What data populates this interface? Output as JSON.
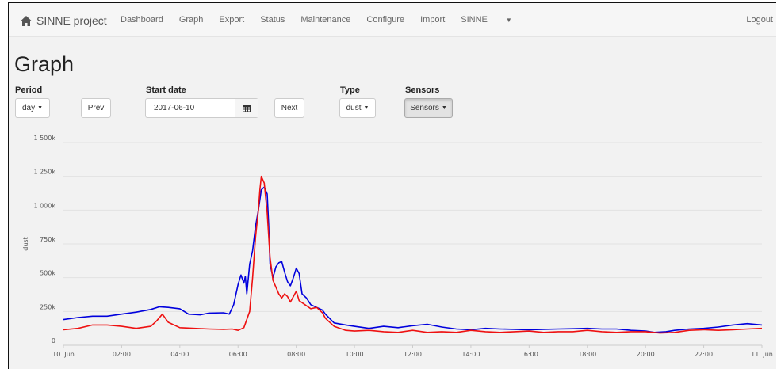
{
  "navbar": {
    "brand": "SINNE project",
    "links": [
      {
        "label": "Dashboard"
      },
      {
        "label": "Graph"
      },
      {
        "label": "Export"
      },
      {
        "label": "Status"
      },
      {
        "label": "Maintenance"
      },
      {
        "label": "Configure"
      },
      {
        "label": "Import"
      },
      {
        "label": "SINNE",
        "dropdown": true
      }
    ],
    "logout": "Logout"
  },
  "page_title": "Graph",
  "filters": {
    "period_label": "Period",
    "period_value": "day",
    "prev_label": "Prev",
    "start_date_label": "Start date",
    "start_date_value": "2017-06-10",
    "next_label": "Next",
    "type_label": "Type",
    "type_value": "dust",
    "sensors_label": "Sensors",
    "sensors_button": "Sensors"
  },
  "icons": {
    "brand": "home-icon",
    "date_addon": "calendar-icon",
    "caret": "caret-down-icon"
  },
  "colors": {
    "series_blue": "#0000dd",
    "series_red": "#ee1111",
    "background": "#f2f2f2"
  },
  "chart_data": {
    "type": "line",
    "ylabel": "dust",
    "ylim": [
      0,
      1500000
    ],
    "y_ticks": [
      {
        "value": 0,
        "label": "0"
      },
      {
        "value": 250000,
        "label": "250k"
      },
      {
        "value": 500000,
        "label": "500k"
      },
      {
        "value": 750000,
        "label": "750k"
      },
      {
        "value": 1000000,
        "label": "1 000k"
      },
      {
        "value": 1250000,
        "label": "1 250k"
      },
      {
        "value": 1500000,
        "label": "1 500k"
      }
    ],
    "x_unit": "hours after 10 Jun 00:00",
    "xlim": [
      0,
      24
    ],
    "x_ticks": [
      {
        "value": 0,
        "label": "10. Jun"
      },
      {
        "value": 2,
        "label": "02:00"
      },
      {
        "value": 4,
        "label": "04:00"
      },
      {
        "value": 6,
        "label": "06:00"
      },
      {
        "value": 8,
        "label": "08:00"
      },
      {
        "value": 10,
        "label": "10:00"
      },
      {
        "value": 12,
        "label": "12:00"
      },
      {
        "value": 14,
        "label": "14:00"
      },
      {
        "value": 16,
        "label": "16:00"
      },
      {
        "value": 18,
        "label": "18:00"
      },
      {
        "value": 20,
        "label": "20:00"
      },
      {
        "value": 22,
        "label": "22:00"
      },
      {
        "value": 24,
        "label": "11. Jun"
      }
    ],
    "grid": true,
    "series": [
      {
        "color": "#0000dd",
        "points": [
          [
            0,
            190000
          ],
          [
            0.5,
            205000
          ],
          [
            1,
            215000
          ],
          [
            1.5,
            215000
          ],
          [
            2,
            230000
          ],
          [
            2.5,
            245000
          ],
          [
            3,
            265000
          ],
          [
            3.3,
            285000
          ],
          [
            3.6,
            280000
          ],
          [
            4,
            270000
          ],
          [
            4.3,
            230000
          ],
          [
            4.7,
            225000
          ],
          [
            5,
            238000
          ],
          [
            5.5,
            240000
          ],
          [
            5.7,
            230000
          ],
          [
            5.85,
            300000
          ],
          [
            6.0,
            450000
          ],
          [
            6.1,
            520000
          ],
          [
            6.2,
            460000
          ],
          [
            6.25,
            510000
          ],
          [
            6.3,
            380000
          ],
          [
            6.4,
            600000
          ],
          [
            6.5,
            700000
          ],
          [
            6.6,
            880000
          ],
          [
            6.7,
            1000000
          ],
          [
            6.8,
            1150000
          ],
          [
            6.9,
            1170000
          ],
          [
            7.0,
            1120000
          ],
          [
            7.05,
            900000
          ],
          [
            7.1,
            600000
          ],
          [
            7.2,
            500000
          ],
          [
            7.3,
            580000
          ],
          [
            7.4,
            610000
          ],
          [
            7.5,
            620000
          ],
          [
            7.6,
            540000
          ],
          [
            7.7,
            470000
          ],
          [
            7.8,
            440000
          ],
          [
            7.9,
            500000
          ],
          [
            8.0,
            570000
          ],
          [
            8.1,
            530000
          ],
          [
            8.2,
            380000
          ],
          [
            8.35,
            350000
          ],
          [
            8.5,
            300000
          ],
          [
            8.7,
            280000
          ],
          [
            8.9,
            260000
          ],
          [
            9,
            230000
          ],
          [
            9.3,
            165000
          ],
          [
            9.7,
            150000
          ],
          [
            10,
            140000
          ],
          [
            10.5,
            125000
          ],
          [
            11,
            140000
          ],
          [
            11.5,
            130000
          ],
          [
            12,
            145000
          ],
          [
            12.5,
            155000
          ],
          [
            13,
            135000
          ],
          [
            13.5,
            120000
          ],
          [
            14,
            115000
          ],
          [
            14.5,
            125000
          ],
          [
            15,
            120000
          ],
          [
            15.5,
            118000
          ],
          [
            16,
            115000
          ],
          [
            16.5,
            118000
          ],
          [
            17,
            120000
          ],
          [
            17.5,
            122000
          ],
          [
            18,
            125000
          ],
          [
            18.5,
            120000
          ],
          [
            19,
            120000
          ],
          [
            19.5,
            110000
          ],
          [
            20,
            105000
          ],
          [
            20.3,
            95000
          ],
          [
            20.7,
            100000
          ],
          [
            21,
            110000
          ],
          [
            21.5,
            120000
          ],
          [
            22,
            125000
          ],
          [
            22.5,
            135000
          ],
          [
            23,
            150000
          ],
          [
            23.5,
            160000
          ],
          [
            24,
            150000
          ]
        ]
      },
      {
        "color": "#ee1111",
        "points": [
          [
            0,
            115000
          ],
          [
            0.5,
            125000
          ],
          [
            1,
            150000
          ],
          [
            1.5,
            150000
          ],
          [
            2,
            140000
          ],
          [
            2.5,
            125000
          ],
          [
            3,
            140000
          ],
          [
            3.2,
            180000
          ],
          [
            3.4,
            230000
          ],
          [
            3.6,
            170000
          ],
          [
            4,
            130000
          ],
          [
            4.5,
            125000
          ],
          [
            5,
            120000
          ],
          [
            5.5,
            118000
          ],
          [
            5.8,
            120000
          ],
          [
            6.0,
            110000
          ],
          [
            6.2,
            130000
          ],
          [
            6.4,
            250000
          ],
          [
            6.5,
            500000
          ],
          [
            6.6,
            800000
          ],
          [
            6.7,
            1000000
          ],
          [
            6.75,
            1150000
          ],
          [
            6.8,
            1250000
          ],
          [
            6.9,
            1200000
          ],
          [
            7.0,
            980000
          ],
          [
            7.1,
            650000
          ],
          [
            7.2,
            480000
          ],
          [
            7.3,
            430000
          ],
          [
            7.4,
            380000
          ],
          [
            7.5,
            350000
          ],
          [
            7.6,
            380000
          ],
          [
            7.7,
            360000
          ],
          [
            7.8,
            320000
          ],
          [
            7.9,
            360000
          ],
          [
            8.0,
            400000
          ],
          [
            8.1,
            330000
          ],
          [
            8.3,
            300000
          ],
          [
            8.5,
            270000
          ],
          [
            8.7,
            280000
          ],
          [
            8.9,
            240000
          ],
          [
            9,
            200000
          ],
          [
            9.3,
            140000
          ],
          [
            9.7,
            110000
          ],
          [
            10,
            105000
          ],
          [
            10.5,
            110000
          ],
          [
            11,
            100000
          ],
          [
            11.5,
            95000
          ],
          [
            12,
            110000
          ],
          [
            12.5,
            95000
          ],
          [
            13,
            100000
          ],
          [
            13.5,
            95000
          ],
          [
            14,
            110000
          ],
          [
            14.5,
            100000
          ],
          [
            15,
            95000
          ],
          [
            15.5,
            100000
          ],
          [
            16,
            105000
          ],
          [
            16.5,
            95000
          ],
          [
            17,
            100000
          ],
          [
            17.5,
            100000
          ],
          [
            18,
            110000
          ],
          [
            18.5,
            100000
          ],
          [
            19,
            95000
          ],
          [
            19.5,
            100000
          ],
          [
            20,
            100000
          ],
          [
            20.5,
            90000
          ],
          [
            21,
            95000
          ],
          [
            21.5,
            110000
          ],
          [
            22,
            115000
          ],
          [
            22.5,
            110000
          ],
          [
            23,
            115000
          ],
          [
            23.5,
            120000
          ],
          [
            24,
            125000
          ]
        ]
      }
    ]
  }
}
